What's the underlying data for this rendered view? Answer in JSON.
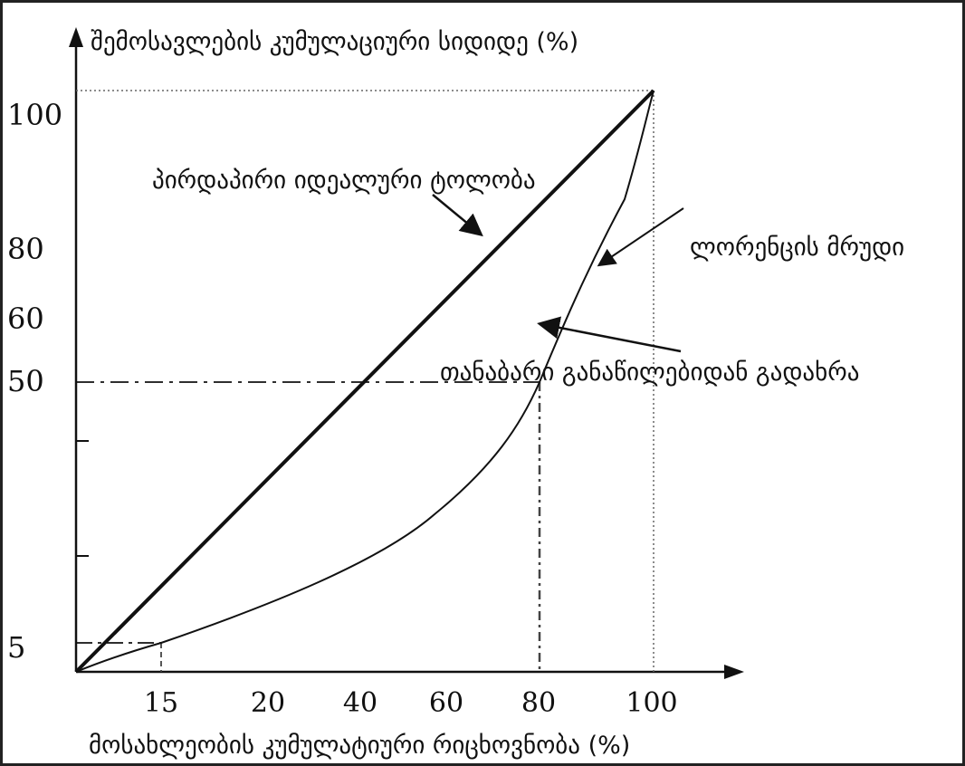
{
  "y_axis": {
    "title": "შემოსავლების კუმულაციური სიდიდე (%)",
    "tick_labels": [
      "100",
      "80",
      "60",
      "50",
      "5"
    ]
  },
  "x_axis": {
    "title": "მოსახლეობის კუმულატიური რიცხოვნობა (%)",
    "tick_labels": [
      "15",
      "20",
      "40",
      "60",
      "80",
      "100"
    ]
  },
  "annotations": {
    "equality_line": "პირდაპირი იდეალური ტოლობა",
    "lorenz_curve": "ლორენცის მრუდი",
    "deviation": "თანაბარი განაწილებიდან გადახრა"
  },
  "colors": {
    "line": "#111111",
    "guide": "#444444",
    "border": "#222222"
  }
}
